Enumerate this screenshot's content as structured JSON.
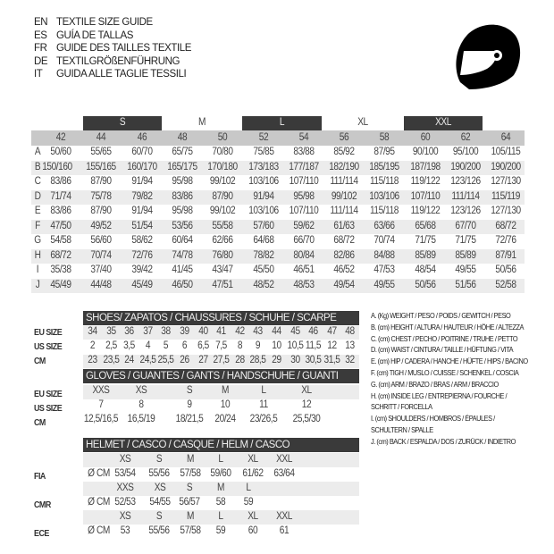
{
  "titles": [
    {
      "code": "EN",
      "text": "TEXTILE SIZE GUIDE"
    },
    {
      "code": "ES",
      "text": "GUÍA DE TALLAS"
    },
    {
      "code": "FR",
      "text": "GUIDE DES TAILLES TEXTILE"
    },
    {
      "code": "DE",
      "text": "TEXTILGRÖßENFÜHRUNG"
    },
    {
      "code": "IT",
      "text": "GUIDA ALLE TAGLIE TESSILI"
    }
  ],
  "logo": {
    "icon": "helmet-icon"
  },
  "colors": {
    "dark": "#3a3a3a",
    "header_grey": "#c8c8c8",
    "row_grey": "#ececec"
  },
  "textile": {
    "size_groups": [
      {
        "label": "S",
        "dark": true
      },
      {
        "label": "M",
        "dark": false
      },
      {
        "label": "L",
        "dark": true
      },
      {
        "label": "XL",
        "dark": false
      },
      {
        "label": "XXL",
        "dark": true
      }
    ],
    "eu_sizes": [
      "42",
      "44",
      "46",
      "48",
      "50",
      "52",
      "54",
      "56",
      "58",
      "60",
      "62",
      "64"
    ],
    "rows": [
      {
        "letter": "A",
        "values": [
          "50/60",
          "55/65",
          "60/70",
          "65/75",
          "70/80",
          "75/85",
          "83/88",
          "85/92",
          "87/95",
          "90/100",
          "95/100",
          "105/115"
        ]
      },
      {
        "letter": "B",
        "values": [
          "150/160",
          "155/165",
          "160/170",
          "165/175",
          "170/180",
          "173/183",
          "177/187",
          "182/190",
          "185/195",
          "187/198",
          "190/200",
          "190/200"
        ]
      },
      {
        "letter": "C",
        "values": [
          "83/86",
          "87/90",
          "91/94",
          "95/98",
          "99/102",
          "103/106",
          "107/110",
          "111/114",
          "115/118",
          "119/122",
          "123/126",
          "127/130"
        ]
      },
      {
        "letter": "D",
        "values": [
          "71/74",
          "75/78",
          "79/82",
          "83/86",
          "87/90",
          "91/94",
          "95/98",
          "99/102",
          "103/106",
          "107/110",
          "111/114",
          "115/119"
        ]
      },
      {
        "letter": "E",
        "values": [
          "83/86",
          "87/90",
          "91/94",
          "95/98",
          "99/102",
          "103/106",
          "107/110",
          "111/114",
          "115/118",
          "119/122",
          "123/126",
          "127/130"
        ]
      },
      {
        "letter": "F",
        "values": [
          "47/50",
          "49/52",
          "51/54",
          "53/56",
          "55/58",
          "57/60",
          "59/62",
          "61/63",
          "63/66",
          "65/68",
          "67/70",
          "68/72"
        ]
      },
      {
        "letter": "G",
        "values": [
          "54/58",
          "56/60",
          "58/62",
          "60/64",
          "62/66",
          "64/68",
          "66/70",
          "68/72",
          "70/74",
          "71/75",
          "71/75",
          "72/76"
        ]
      },
      {
        "letter": "H",
        "values": [
          "68/72",
          "70/74",
          "72/76",
          "74/78",
          "76/80",
          "78/82",
          "80/84",
          "82/86",
          "84/88",
          "85/89",
          "85/89",
          "87/91"
        ]
      },
      {
        "letter": "I",
        "values": [
          "35/38",
          "37/40",
          "39/42",
          "41/45",
          "43/47",
          "45/50",
          "46/51",
          "46/52",
          "47/53",
          "48/54",
          "49/55",
          "50/56"
        ]
      },
      {
        "letter": "J",
        "values": [
          "45/49",
          "44/48",
          "45/49",
          "46/50",
          "47/51",
          "48/52",
          "48/53",
          "49/54",
          "49/55",
          "50/56",
          "51/56",
          "52/58"
        ]
      }
    ]
  },
  "shoes": {
    "title": "SHOES/ ZAPATOS / CHAUSSURES / SCHUHE / SCARPE",
    "rows": [
      {
        "label": "EU SIZE",
        "values": [
          "34",
          "35",
          "36",
          "37",
          "38",
          "39",
          "40",
          "41",
          "42",
          "43",
          "44",
          "45",
          "46",
          "47",
          "48"
        ]
      },
      {
        "label": "US SIZE",
        "values": [
          "2",
          "2,5",
          "3,5",
          "4",
          "5",
          "6",
          "6,5",
          "7,5",
          "8",
          "9",
          "10",
          "10,5",
          "11,5",
          "12",
          "13"
        ]
      },
      {
        "label": "CM",
        "values": [
          "23",
          "23,5",
          "24",
          "24,5",
          "25,5",
          "26",
          "27",
          "27,5",
          "28",
          "28,5",
          "29",
          "30",
          "30,5",
          "31,5",
          "32"
        ]
      }
    ]
  },
  "gloves": {
    "title": "GLOVES / GUANTES / GANTS / HANDSCHUHE / GUANTI",
    "rows": [
      {
        "label": "EU SIZE",
        "values": [
          "XXS",
          "XS",
          "S",
          "M",
          "L",
          "XL"
        ]
      },
      {
        "label": "US SIZE",
        "values": [
          "7",
          "8",
          "9",
          "10",
          "11",
          "12"
        ]
      },
      {
        "label": "CM",
        "values": [
          "12,5/16,5",
          "16,5/19",
          "18/21,5",
          "20/24",
          "23/26,5",
          "25,5/30"
        ]
      }
    ]
  },
  "helmet": {
    "title": "HELMET / CASCO / CASQUE / HELM / CASCO",
    "unit": "Ø CM",
    "standards": [
      {
        "label": "FIA",
        "sizes": [
          "XS",
          "S",
          "M",
          "L",
          "XL",
          "XXL"
        ],
        "values": [
          "53/54",
          "55/56",
          "57/58",
          "59/60",
          "61/62",
          "63/64"
        ]
      },
      {
        "label": "CMR",
        "sizes": [
          "XXS",
          "XS",
          "S",
          "M",
          "L"
        ],
        "values": [
          "52/53",
          "54/55",
          "56/57",
          "58",
          "59"
        ]
      },
      {
        "label": "ECE",
        "sizes": [
          "XS",
          "S",
          "M",
          "L",
          "XL",
          "XXL"
        ],
        "values": [
          "53",
          "55/56",
          "57/58",
          "59",
          "60",
          "61"
        ]
      }
    ]
  },
  "legend": [
    "A. (Kg) WEIGHT / PESO / POIDS / GEWITCH / PESO",
    "B. (cm) HEIGHT / ALTURA / HAUTEUR / HÖHE / ALTEZZA",
    "C. (cm) CHEST / PECHO / POITRINE / TRUHE / PETTO",
    "D. (cm) WAIST / CINTURA / TAILLE / HÜFTUNG / VITA",
    "E. (cm) HIP / CADERA / HANCHE / HÜFTE / HIPS /  BACINO",
    "F.  (cm) TIGH / MUSLO / CUISSE / SCHENKEL / COSCIA",
    "G. (cm) ARM  / BRAZO / BRAS / ARM / BRACCIO",
    "H. (cm) INSIDE LEG / ENTREPIERNA / FOURCHE /",
    "SCHRITT / FORCELLA",
    "I.  (cm) SHOULDERS / HOMBROS / ÉPAULES /",
    "SCHULTERN / SPALLE",
    "J. (cm) BACK / ESPALDA / DOS / ZURÜCK / INDIETRO"
  ]
}
